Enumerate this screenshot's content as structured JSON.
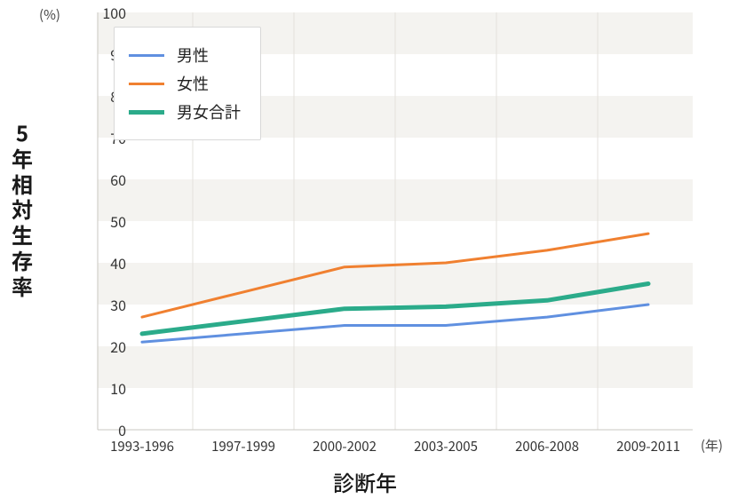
{
  "chart": {
    "type": "line",
    "y_axis_title": "5年相対生存率",
    "y_unit_label": "(%)",
    "x_axis_title": "診断年",
    "x_unit_label": "(年)",
    "background_color": "#ffffff",
    "band_color": "#f4f3f0",
    "gridline_color": "#e3e1dc",
    "axis_line_color": "#c9c7c1",
    "label_color": "#333333",
    "title_fontsize": 24,
    "tick_fontsize": 16,
    "xtick_fontsize": 15,
    "ylim": [
      0,
      100
    ],
    "ytick_step": 10,
    "categories": [
      "1993-1996",
      "1997-1999",
      "2000-2002",
      "2003-2005",
      "2006-2008",
      "2009-2011"
    ],
    "series": [
      {
        "label": "男性",
        "color": "#6090e0",
        "line_width": 3,
        "values": [
          21,
          23,
          25,
          25,
          27,
          30
        ]
      },
      {
        "label": "女性",
        "color": "#f08030",
        "line_width": 3,
        "values": [
          27,
          33,
          39,
          40,
          43,
          47
        ]
      },
      {
        "label": "男女合計",
        "color": "#2bab8a",
        "line_width": 5,
        "values": [
          23,
          26,
          29,
          29.5,
          31,
          35
        ]
      }
    ],
    "legend": {
      "position": "top-left",
      "border_color": "#d8d8d8",
      "background": "#ffffff",
      "label_fontsize": 18
    }
  }
}
